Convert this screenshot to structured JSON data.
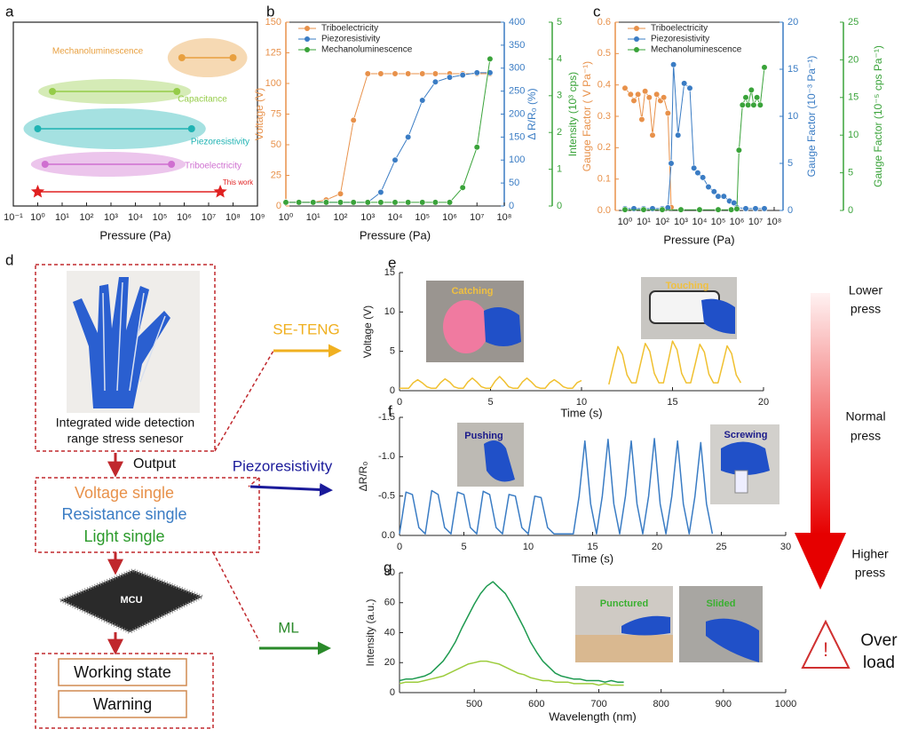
{
  "panel_labels": [
    "a",
    "b",
    "c",
    "d",
    "e",
    "f",
    "g"
  ],
  "diagram": {
    "sensor": [
      "Integrated wide detection",
      "range stress senesor"
    ],
    "output": "Output",
    "signals": [
      "Voltage single",
      "Resistance single",
      "Light single"
    ],
    "mcu": "MCU",
    "states": [
      "Working state",
      "Warning"
    ],
    "branches": [
      "SE-TENG",
      "Piezoresistivity",
      "ML"
    ],
    "photos": [
      "Catching",
      "Touching",
      "Pushing",
      "Screwing",
      "Punctured",
      "Slided"
    ],
    "press_levels": [
      [
        "Lower",
        "press"
      ],
      [
        "Normal",
        "press"
      ],
      [
        "Higher",
        "press"
      ]
    ],
    "overload": [
      "Over",
      "load"
    ]
  },
  "chart_data": [
    {
      "type": "range",
      "xscale": "log",
      "xlim": [
        0.1,
        1000000000.0
      ],
      "xticks": [
        {
          "value": 0.1,
          "label": "10⁻¹"
        },
        {
          "value": 1,
          "label": "10⁰"
        },
        {
          "value": 10,
          "label": "10¹"
        },
        {
          "value": 100,
          "label": "10²"
        },
        {
          "value": 1000,
          "label": "10³"
        },
        {
          "value": 10000.0,
          "label": "10⁴"
        },
        {
          "value": 100000.0,
          "label": "10⁵"
        },
        {
          "value": 1000000.0,
          "label": "10⁶"
        },
        {
          "value": 10000000.0,
          "label": "10⁷"
        },
        {
          "value": 100000000.0,
          "label": "10⁸"
        },
        {
          "value": 1000000000.0,
          "label": "10⁹"
        }
      ],
      "xlabel": "Pressure (Pa)",
      "series": [
        {
          "name": "Mechanoluminescence",
          "color": "#e8a040",
          "low": 800000,
          "high": 100000000
        },
        {
          "name": "Capacitance",
          "color": "#95cc48",
          "low": 4,
          "high": 500000
        },
        {
          "name": "Piezoresistivity",
          "color": "#1fb3b3",
          "low": 1,
          "high": 2000000
        },
        {
          "name": "Triboelectricity",
          "color": "#cf6fd0",
          "low": 2,
          "high": 300000
        },
        {
          "name": "This work",
          "color": "#e02020",
          "low": 1,
          "high": 30000000
        }
      ]
    },
    {
      "type": "line",
      "xscale": "log",
      "xlim": [
        1,
        100000000.0
      ],
      "xticks": [
        {
          "value": 1,
          "label": "10⁰"
        },
        {
          "value": 10,
          "label": "10¹"
        },
        {
          "value": 100,
          "label": "10²"
        },
        {
          "value": 1000,
          "label": "10³"
        },
        {
          "value": 10000.0,
          "label": "10⁴"
        },
        {
          "value": 100000.0,
          "label": "10⁵"
        },
        {
          "value": 1000000.0,
          "label": "10⁶"
        },
        {
          "value": 10000000.0,
          "label": "10⁷"
        },
        {
          "value": 100000000.0,
          "label": "10⁸"
        }
      ],
      "xlabel": "Pressure (Pa)",
      "ylabel": "Voltage (V)",
      "ylim": [
        0,
        150
      ],
      "yticks": [
        0,
        25,
        50,
        75,
        100,
        125,
        150
      ],
      "y2label": "Δ R/R₀ (%)",
      "y2lim": [
        0,
        400
      ],
      "y2ticks": [
        0,
        50,
        100,
        150,
        200,
        250,
        300,
        350,
        400
      ],
      "y3label": "Intensity (10³ cps)",
      "y3lim": [
        0,
        5
      ],
      "y3ticks": [
        0,
        1,
        2,
        3,
        4,
        5
      ],
      "legend": "upper left",
      "markers": true,
      "x": [
        1,
        3,
        10,
        30,
        100,
        300,
        1000,
        3000,
        10000,
        30000,
        100000,
        300000,
        1000000,
        3000000,
        10000000,
        30000000
      ],
      "series": [
        {
          "name": "Triboelectricity",
          "color": "#e8914a",
          "values": [
            3,
            3,
            3,
            5,
            10,
            70,
            108,
            108,
            108,
            108,
            108,
            108,
            108,
            108,
            108,
            108
          ]
        },
        {
          "name": "Piezoresistivity",
          "color": "#3a7cc4",
          "axis": "y2",
          "values": [
            8,
            8,
            8,
            8,
            8,
            8,
            8,
            30,
            100,
            150,
            230,
            270,
            280,
            285,
            290,
            290
          ]
        },
        {
          "name": "Mechanoluminescence",
          "color": "#3aa33a",
          "axis": "y3",
          "values": [
            0.1,
            0.1,
            0.1,
            0.1,
            0.1,
            0.1,
            0.1,
            0.1,
            0.1,
            0.1,
            0.1,
            0.1,
            0.1,
            0.5,
            1.6,
            4.0
          ]
        }
      ]
    },
    {
      "type": "line",
      "xscale": "log",
      "xlim": [
        0.3,
        300000000.0
      ],
      "xticks": [
        {
          "value": 1,
          "label": "10⁰"
        },
        {
          "value": 10,
          "label": "10¹"
        },
        {
          "value": 100,
          "label": "10²"
        },
        {
          "value": 1000,
          "label": "10³"
        },
        {
          "value": 10000.0,
          "label": "10⁴"
        },
        {
          "value": 100000.0,
          "label": "10⁵"
        },
        {
          "value": 1000000.0,
          "label": "10⁶"
        },
        {
          "value": 10000000.0,
          "label": "10⁷"
        },
        {
          "value": 100000000.0,
          "label": "10⁸"
        }
      ],
      "xlabel": "Pressure (Pa)",
      "ylabel": "Gauge Factor ( V Pa⁻¹)",
      "ylim": [
        0,
        0.6
      ],
      "yticks": [
        {
          "value": 0,
          "label": "0.0"
        },
        0.1,
        0.2,
        0.3,
        0.4,
        0.5,
        0.6
      ],
      "y2label": "Gauge Factor (10⁻³ Pa⁻¹)",
      "y2lim": [
        0,
        20
      ],
      "y2ticks": [
        0,
        5,
        10,
        15,
        20
      ],
      "y3label": "Gauge Factor (10⁻⁵ cps Pa⁻¹)",
      "y3lim": [
        0,
        25
      ],
      "y3ticks": [
        0,
        5,
        10,
        15,
        20,
        25
      ],
      "legend": "upper left",
      "markers": true,
      "series": [
        {
          "name": "Triboelectricity",
          "color": "#e8914a",
          "x": [
            1,
            2,
            3,
            5,
            8,
            12,
            20,
            30,
            50,
            80,
            120,
            200,
            300
          ],
          "values": [
            0.39,
            0.37,
            0.35,
            0.37,
            0.29,
            0.38,
            0.36,
            0.24,
            0.37,
            0.35,
            0.36,
            0.31,
            0.01
          ]
        },
        {
          "name": "Piezoresistivity",
          "color": "#3a7cc4",
          "axis": "y2",
          "x": [
            1,
            3,
            10,
            30,
            100,
            200,
            300,
            400,
            700,
            1500,
            3000,
            5000,
            8000,
            15000,
            30000,
            60000,
            100000,
            200000,
            400000,
            700000,
            1000000,
            3000000,
            10000000,
            30000000
          ],
          "values": [
            0.2,
            0.2,
            0.2,
            0.2,
            0.2,
            0.3,
            5,
            15.5,
            8,
            13.5,
            13,
            4.5,
            4,
            3.5,
            2.5,
            2,
            1.5,
            1.5,
            1,
            0.8,
            0.3,
            0.2,
            0.2,
            0.2
          ]
        },
        {
          "name": "Mechanoluminescence",
          "color": "#3aa33a",
          "axis": "y3",
          "x": [
            1,
            10,
            100,
            1000,
            10000,
            100000,
            500000,
            1000000,
            1300000,
            2000000,
            3000000,
            4000000,
            6000000,
            8000000,
            12000000,
            18000000,
            30000000
          ],
          "values": [
            0.1,
            0.1,
            0.1,
            0.1,
            0.1,
            0.1,
            0.1,
            0.2,
            8,
            14,
            15,
            14,
            16,
            14,
            15,
            14,
            19
          ]
        }
      ]
    },
    {
      "type": "line",
      "xlim": [
        0,
        20
      ],
      "xticks": [
        0,
        5,
        10,
        15,
        20
      ],
      "ylim": [
        0,
        15
      ],
      "yticks": [
        0,
        5,
        10,
        15
      ],
      "xlabel": "Time (s)",
      "ylabel": "Voltage (V)",
      "color": "#f0c030",
      "x": [
        0,
        0.25,
        0.5,
        0.75,
        1,
        1.25,
        1.5,
        1.75,
        2,
        2.25,
        2.5,
        2.75,
        3,
        3.25,
        3.5,
        3.75,
        4,
        4.25,
        4.5,
        4.75,
        5,
        5.25,
        5.5,
        5.75,
        6,
        6.25,
        6.5,
        6.75,
        7,
        7.25,
        7.5,
        7.75,
        8,
        8.25,
        8.5,
        8.75,
        9,
        9.25,
        9.5,
        9.75,
        10,
        10.75,
        11.5,
        11.75,
        12,
        12.25,
        12.5,
        12.75,
        13,
        13.25,
        13.5,
        13.75,
        14,
        14.25,
        14.5,
        14.75,
        15,
        15.25,
        15.5,
        15.75,
        16,
        16.25,
        16.5,
        16.75,
        17,
        17.25,
        17.5,
        17.75,
        18,
        18.25,
        18.5,
        18.75
      ],
      "values": [
        0.3,
        0.3,
        0.3,
        1.0,
        1.4,
        1.0,
        0.5,
        0.3,
        0.3,
        1.0,
        1.5,
        1.1,
        0.5,
        0.3,
        0.3,
        1.1,
        1.6,
        1.1,
        0.5,
        0.3,
        0.3,
        1.2,
        1.8,
        1.2,
        0.5,
        0.3,
        0.3,
        1.1,
        1.6,
        1.1,
        0.5,
        0.3,
        0.3,
        1.0,
        1.4,
        1.0,
        0.5,
        0.3,
        0.3,
        1.0,
        1.3,
        null,
        0.8,
        3.2,
        5.6,
        4.6,
        2.0,
        1.0,
        1.0,
        3.5,
        6.0,
        5.0,
        2.2,
        1.0,
        1.0,
        3.6,
        6.3,
        5.2,
        2.2,
        1.0,
        1.0,
        3.4,
        5.9,
        4.9,
        2.1,
        1.0,
        1.0,
        3.3,
        5.7,
        4.7,
        2.0,
        1.0
      ]
    },
    {
      "type": "line",
      "xlim": [
        0,
        30
      ],
      "xticks": [
        0,
        5,
        10,
        15,
        20,
        25,
        30
      ],
      "ylim": [
        0,
        -1.5
      ],
      "yticks": [
        {
          "value": 0,
          "label": "0.0"
        },
        -0.5,
        {
          "value": -1,
          "label": "-1.0"
        },
        -1.5
      ],
      "xlabel": "Time (s)",
      "ylabel": "ΔR/R₀",
      "color": "#3a7cc4",
      "x": [
        0,
        0.5,
        1,
        1.5,
        2,
        2.5,
        3,
        3.5,
        4,
        4.5,
        5,
        5.5,
        6,
        6.5,
        7,
        7.5,
        8,
        8.5,
        9,
        9.5,
        10,
        10.5,
        11,
        11.5,
        12,
        12.5,
        13,
        13.5,
        13.95,
        14.4,
        14.85,
        15.3,
        15.75,
        16.2,
        16.65,
        17.1,
        17.55,
        18,
        18.45,
        18.9,
        19.35,
        19.8,
        20.25,
        20.7,
        21.15,
        21.6,
        22.05,
        22.5,
        22.95,
        23.4,
        23.85,
        24.3
      ],
      "values": [
        -0.02,
        -0.55,
        -0.52,
        -0.1,
        -0.02,
        -0.57,
        -0.52,
        -0.1,
        -0.02,
        -0.55,
        -0.52,
        -0.1,
        -0.02,
        -0.56,
        -0.52,
        -0.1,
        -0.02,
        -0.52,
        -0.5,
        -0.1,
        -0.02,
        -0.5,
        -0.48,
        -0.1,
        -0.02,
        -0.02,
        -0.02,
        -0.02,
        -0.5,
        -1.2,
        -0.4,
        -0.02,
        -0.5,
        -1.22,
        -0.4,
        -0.02,
        -0.5,
        -1.2,
        -0.4,
        -0.02,
        -0.5,
        -1.23,
        -0.4,
        -0.02,
        -0.5,
        -1.2,
        -0.4,
        -0.02,
        -0.5,
        -1.18,
        -0.4,
        -0.02
      ]
    },
    {
      "type": "line",
      "xlim": [
        380,
        1000
      ],
      "xticks": [
        500,
        600,
        700,
        800,
        900,
        1000
      ],
      "ylim": [
        0,
        80
      ],
      "yticks": [
        0,
        20,
        40,
        60,
        80
      ],
      "xlabel": "Wavelength (nm)",
      "ylabel": "Intensity (a.u.)",
      "x": [
        380,
        390,
        400,
        410,
        420,
        430,
        440,
        450,
        460,
        470,
        480,
        490,
        500,
        510,
        520,
        530,
        540,
        550,
        560,
        570,
        580,
        590,
        600,
        610,
        620,
        630,
        640,
        650,
        660,
        670,
        680,
        690,
        700,
        710,
        720,
        730,
        740
      ],
      "series": [
        {
          "color": "#1e9a50",
          "values": [
            8,
            9,
            9,
            10,
            11,
            13,
            17,
            21,
            27,
            34,
            43,
            51,
            59,
            66,
            71,
            74,
            70,
            66,
            59,
            51,
            43,
            34,
            27,
            21,
            17,
            13,
            11,
            10,
            9,
            9,
            8,
            8,
            8,
            7,
            8,
            7,
            7
          ]
        },
        {
          "color": "#9ccc3c",
          "values": [
            6,
            7,
            7,
            7,
            8,
            9,
            10,
            11,
            13,
            15,
            17,
            19,
            20,
            21,
            21,
            20,
            19,
            17,
            15,
            13,
            12,
            10,
            9,
            8,
            8,
            7,
            7,
            7,
            6,
            6,
            6,
            6,
            5,
            6,
            5,
            5,
            5
          ]
        }
      ]
    }
  ]
}
